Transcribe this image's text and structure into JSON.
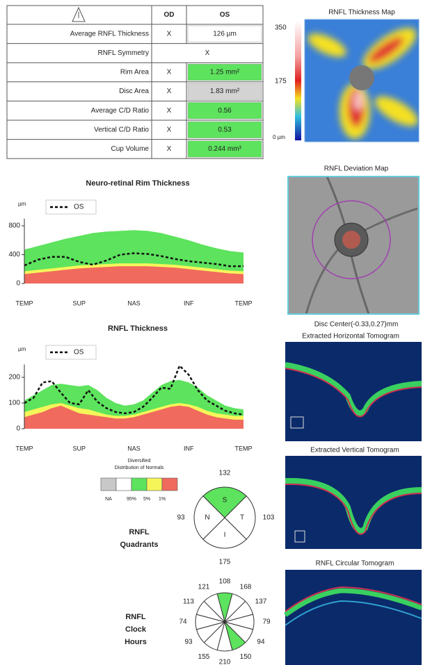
{
  "table": {
    "headers": [
      "OD",
      "OS"
    ],
    "rows": [
      [
        "Average RNFL Thickness",
        "X",
        "126 µm"
      ],
      [
        "RNFL Symmetry",
        "X"
      ],
      [
        "Rim Area",
        "X",
        "1.25 mm²"
      ],
      [
        "Disc Area",
        "X",
        "1.83 mm²"
      ],
      [
        "Average C/D Ratio",
        "X",
        "0.56"
      ],
      [
        "Vertical C/D Ratio",
        "X",
        "0.53"
      ],
      [
        "Cup Volume",
        "X",
        "0.244 mm³"
      ]
    ],
    "os_fill": [
      "#ffffff",
      "#ffffff",
      "#5de35d",
      "#d3d3d3",
      "#5de35d",
      "#5de35d",
      "#5de35d"
    ]
  },
  "thickness_map": {
    "title": "RNFL Thickness Map",
    "scale": [
      "350",
      "175",
      "0 µm"
    ]
  },
  "deviation_map": {
    "title": "RNFL Deviation Map",
    "caption": "Disc Center(-0.33,0.27)mm"
  },
  "tomograms": [
    "Extracted Horizontal Tomogram",
    "Extracted Vertical Tomogram",
    "RNFL Circular Tomogram"
  ],
  "rim_chart": {
    "title": "Neuro-retinal Rim Thickness",
    "unit": "µm",
    "legend": "OS",
    "categories": [
      "TEMP",
      "SUP",
      "NAS",
      "INF",
      "TEMP"
    ],
    "ylim": [
      0,
      900
    ],
    "yticks": [
      0,
      400,
      800
    ],
    "os": [
      250,
      330,
      370,
      370,
      300,
      260,
      320,
      400,
      420,
      410,
      380,
      340,
      310,
      290,
      270,
      240,
      240
    ],
    "bands": [
      {
        "color": "#5de35d",
        "values": [
          470,
          520,
          570,
          620,
          660,
          700,
          720,
          730,
          740,
          730,
          700,
          650,
          600,
          540,
          490,
          450,
          430
        ]
      },
      {
        "color": "#f5f55a",
        "values": [
          170,
          190,
          210,
          230,
          250,
          260,
          270,
          280,
          280,
          280,
          270,
          260,
          240,
          220,
          200,
          180,
          170
        ]
      },
      {
        "color": "#f06a5e",
        "values": [
          130,
          150,
          170,
          190,
          210,
          220,
          230,
          240,
          240,
          240,
          230,
          220,
          200,
          180,
          160,
          140,
          130
        ]
      }
    ]
  },
  "rnfl_chart": {
    "title": "RNFL Thickness",
    "unit": "µm",
    "legend": "OS",
    "categories": [
      "TEMP",
      "SUP",
      "NAS",
      "INF",
      "TEMP"
    ],
    "ylim": [
      0,
      250
    ],
    "yticks": [
      0,
      100,
      200
    ],
    "os": [
      100,
      120,
      180,
      185,
      140,
      100,
      95,
      150,
      105,
      80,
      65,
      60,
      65,
      85,
      120,
      160,
      155,
      245,
      210,
      150,
      110,
      90,
      70,
      60,
      55
    ],
    "bands": [
      {
        "color": "#5de35d",
        "values": [
          110,
          130,
          150,
          170,
          175,
          170,
          165,
          170,
          150,
          120,
          100,
          90,
          95,
          110,
          140,
          170,
          185,
          190,
          180,
          160,
          130,
          110,
          90,
          80,
          75
        ]
      },
      {
        "color": "#f5f55a",
        "values": [
          65,
          75,
          85,
          95,
          100,
          90,
          80,
          75,
          65,
          55,
          50,
          50,
          55,
          65,
          75,
          85,
          95,
          100,
          95,
          85,
          70,
          60,
          55,
          50,
          50
        ]
      },
      {
        "color": "#f06a5e",
        "values": [
          45,
          55,
          65,
          80,
          90,
          75,
          60,
          55,
          50,
          45,
          40,
          40,
          45,
          55,
          65,
          75,
          85,
          90,
          85,
          70,
          55,
          45,
          40,
          35,
          35
        ]
      }
    ]
  },
  "distribution_legend": {
    "title": [
      "Diversified",
      "Distribution of Normals"
    ],
    "colors": [
      "#c8c8c8",
      "#ffffff",
      "#5de35d",
      "#f5f55a",
      "#f06a5e"
    ],
    "labels": [
      "NA",
      "95%",
      "5%",
      "1%"
    ]
  },
  "quadrants": {
    "title": [
      "RNFL",
      "Quadrants"
    ],
    "sectors": [
      {
        "label": "S",
        "value": 132,
        "color": "#5de35d"
      },
      {
        "label": "T",
        "value": 103,
        "color": "#ffffff"
      },
      {
        "label": "I",
        "value": 175,
        "color": "#ffffff"
      },
      {
        "label": "N",
        "value": 93,
        "color": "#ffffff"
      }
    ]
  },
  "clock_hours": {
    "title": [
      "RNFL",
      "Clock",
      "Hours"
    ],
    "values": [
      108,
      168,
      137,
      79,
      94,
      150,
      210,
      155,
      93,
      74,
      113,
      121
    ],
    "colors": [
      "#5de35d",
      "#ffffff",
      "#ffffff",
      "#ffffff",
      "#ffffff",
      "#5de35d",
      "#ffffff",
      "#ffffff",
      "#ffffff",
      "#ffffff",
      "#ffffff",
      "#ffffff"
    ]
  }
}
